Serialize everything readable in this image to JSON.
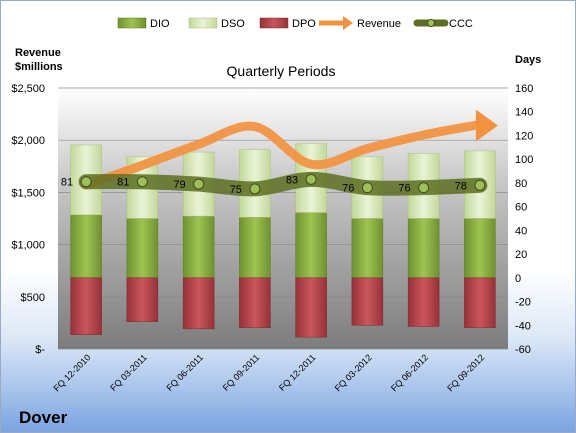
{
  "company": "Dover",
  "left_axis_title": "Revenue\n$millions",
  "right_axis_title": "Days",
  "chart_data": {
    "type": "bar",
    "title": "Quarterly Periods",
    "categories": [
      "FQ 12-2010",
      "FQ 03-2011",
      "FQ 06-2011",
      "FQ 09-2011",
      "FQ 12-2011",
      "FQ 03-2012",
      "FQ 06-2012",
      "FQ 09-2012"
    ],
    "legend_position": "top",
    "grid": true,
    "y_left": {
      "label": "Revenue $millions",
      "range": [
        0,
        2500
      ],
      "ticks": [
        "$-",
        "$500",
        "$1,000",
        "$1,500",
        "$2,000",
        "$2,500"
      ]
    },
    "y_right": {
      "label": "Days",
      "range": [
        -60,
        160
      ],
      "ticks": [
        "-60",
        "-40",
        "-20",
        "0",
        "20",
        "40",
        "60",
        "80",
        "100",
        "120",
        "140",
        "160"
      ]
    },
    "series": [
      {
        "name": "DIO",
        "axis": "right",
        "color": "#8cae3f",
        "values": [
          53,
          50,
          52,
          51,
          55,
          50,
          50,
          50
        ]
      },
      {
        "name": "DSO",
        "axis": "right",
        "color": "#d7e8b8",
        "values": [
          59,
          52,
          54,
          57,
          58,
          52,
          55,
          57
        ]
      },
      {
        "name": "DPO",
        "axis": "right",
        "color": "#b8434a",
        "values": [
          -48,
          -37,
          -43,
          -42,
          -50,
          -40,
          -41,
          -42
        ]
      },
      {
        "name": "Revenue",
        "axis": "left",
        "color": "#f2913f",
        "values": [
          1570,
          1760,
          1960,
          2130,
          1770,
          1920,
          2050,
          2150
        ]
      },
      {
        "name": "CCC",
        "axis": "right",
        "color": "#6b7d2a",
        "values": [
          81,
          81,
          79,
          75,
          83,
          76,
          76,
          78
        ],
        "labels": [
          "81",
          "81",
          "79",
          "75",
          "83",
          "76",
          "76",
          "78"
        ]
      }
    ]
  }
}
